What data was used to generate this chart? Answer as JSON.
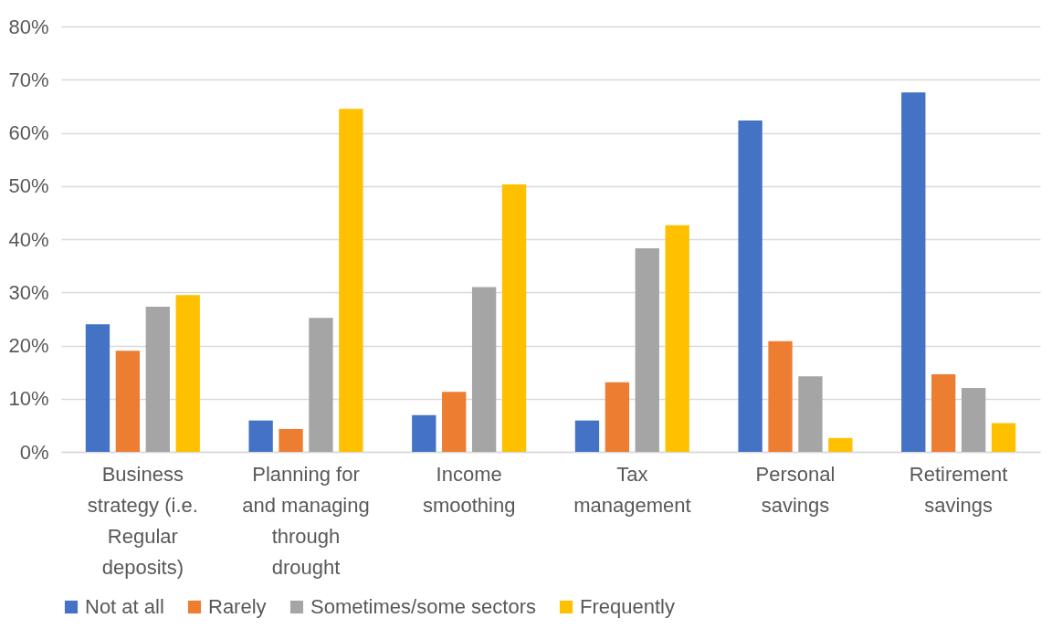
{
  "chart_data": {
    "type": "bar",
    "categories": [
      "Business strategy (i.e. Regular deposits)",
      "Planning for and managing through drought",
      "Income smoothing",
      "Tax management",
      "Personal savings",
      "Retirement savings"
    ],
    "series": [
      {
        "name": "Not at all",
        "color": "#4472c4",
        "values": [
          24,
          5.9,
          6.9,
          5.9,
          62.3,
          67.6
        ]
      },
      {
        "name": "Rarely",
        "color": "#ed7d31",
        "values": [
          19,
          4.3,
          11.3,
          13.1,
          20.8,
          14.6
        ]
      },
      {
        "name": "Sometimes/some sectors",
        "color": "#a5a5a5",
        "values": [
          27.3,
          25.2,
          31,
          38.3,
          14.2,
          12
        ]
      },
      {
        "name": "Frequently",
        "color": "#ffc000",
        "values": [
          29.5,
          64.5,
          50.3,
          42.6,
          2.6,
          5.4
        ]
      }
    ],
    "ylim": [
      0,
      80
    ],
    "yticks": [
      {
        "value": 0,
        "label": "0%"
      },
      {
        "value": 10,
        "label": "10%"
      },
      {
        "value": 20,
        "label": "20%"
      },
      {
        "value": 30,
        "label": "30%"
      },
      {
        "value": 40,
        "label": "40%"
      },
      {
        "value": 50,
        "label": "50%"
      },
      {
        "value": 60,
        "label": "60%"
      },
      {
        "value": 70,
        "label": "70%"
      },
      {
        "value": 80,
        "label": "80%"
      }
    ],
    "grid": "y",
    "legend": "bottom"
  }
}
